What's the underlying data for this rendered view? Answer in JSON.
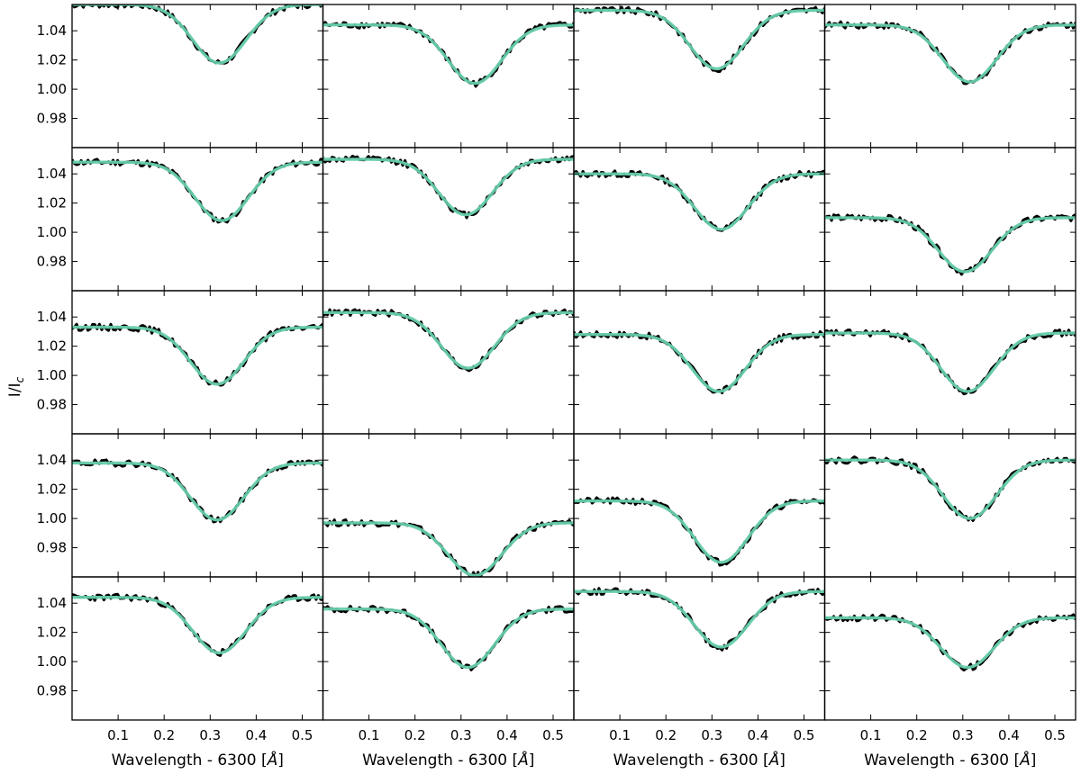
{
  "chart_data": {
    "type": "line",
    "layout": "grid 5 rows x 4 columns, shared axes",
    "xlabel": "Wavelength - 6300 [",
    "xlabel_unit": "Å",
    "xlabel_close": "]",
    "ylabel": "I/I",
    "ylabel_sub": "c",
    "xlim": [
      0.0,
      0.545
    ],
    "ylim": [
      0.96,
      1.058
    ],
    "xticks": [
      0.1,
      0.2,
      0.3,
      0.4,
      0.5
    ],
    "xtick_labels": [
      "0.1",
      "0.2",
      "0.3",
      "0.4",
      "0.5"
    ],
    "yticks": [
      0.98,
      1.0,
      1.02,
      1.04
    ],
    "ytick_labels": [
      "0.98",
      "1.00",
      "1.02",
      "1.04"
    ],
    "grid": false,
    "colors": {
      "observed": "#000000",
      "fit": "#66cdaa"
    },
    "panels": [
      {
        "row": 0,
        "col": 0,
        "continuum": 1.058,
        "minimum": 1.018,
        "center": 0.32
      },
      {
        "row": 0,
        "col": 1,
        "continuum": 1.044,
        "minimum": 1.004,
        "center": 0.33
      },
      {
        "row": 0,
        "col": 2,
        "continuum": 1.054,
        "minimum": 1.014,
        "center": 0.31
      },
      {
        "row": 0,
        "col": 3,
        "continuum": 1.044,
        "minimum": 1.005,
        "center": 0.315
      },
      {
        "row": 1,
        "col": 0,
        "continuum": 1.048,
        "minimum": 1.008,
        "center": 0.325
      },
      {
        "row": 1,
        "col": 1,
        "continuum": 1.05,
        "minimum": 1.012,
        "center": 0.31
      },
      {
        "row": 1,
        "col": 2,
        "continuum": 1.04,
        "minimum": 1.002,
        "center": 0.32
      },
      {
        "row": 1,
        "col": 3,
        "continuum": 1.01,
        "minimum": 0.973,
        "center": 0.305
      },
      {
        "row": 2,
        "col": 0,
        "continuum": 1.033,
        "minimum": 0.994,
        "center": 0.315
      },
      {
        "row": 2,
        "col": 1,
        "continuum": 1.043,
        "minimum": 1.005,
        "center": 0.315
      },
      {
        "row": 2,
        "col": 2,
        "continuum": 1.028,
        "minimum": 0.989,
        "center": 0.315
      },
      {
        "row": 2,
        "col": 3,
        "continuum": 1.029,
        "minimum": 0.989,
        "center": 0.31
      },
      {
        "row": 3,
        "col": 0,
        "continuum": 1.038,
        "minimum": 0.999,
        "center": 0.315
      },
      {
        "row": 3,
        "col": 1,
        "continuum": 0.997,
        "minimum": 0.961,
        "center": 0.33
      },
      {
        "row": 3,
        "col": 2,
        "continuum": 1.012,
        "minimum": 0.97,
        "center": 0.32
      },
      {
        "row": 3,
        "col": 3,
        "continuum": 1.04,
        "minimum": 1.0,
        "center": 0.315
      },
      {
        "row": 4,
        "col": 0,
        "continuum": 1.044,
        "minimum": 1.006,
        "center": 0.32
      },
      {
        "row": 4,
        "col": 1,
        "continuum": 1.036,
        "minimum": 0.996,
        "center": 0.315
      },
      {
        "row": 4,
        "col": 2,
        "continuum": 1.048,
        "minimum": 1.01,
        "center": 0.32
      },
      {
        "row": 4,
        "col": 3,
        "continuum": 1.03,
        "minimum": 0.996,
        "center": 0.31
      }
    ]
  }
}
